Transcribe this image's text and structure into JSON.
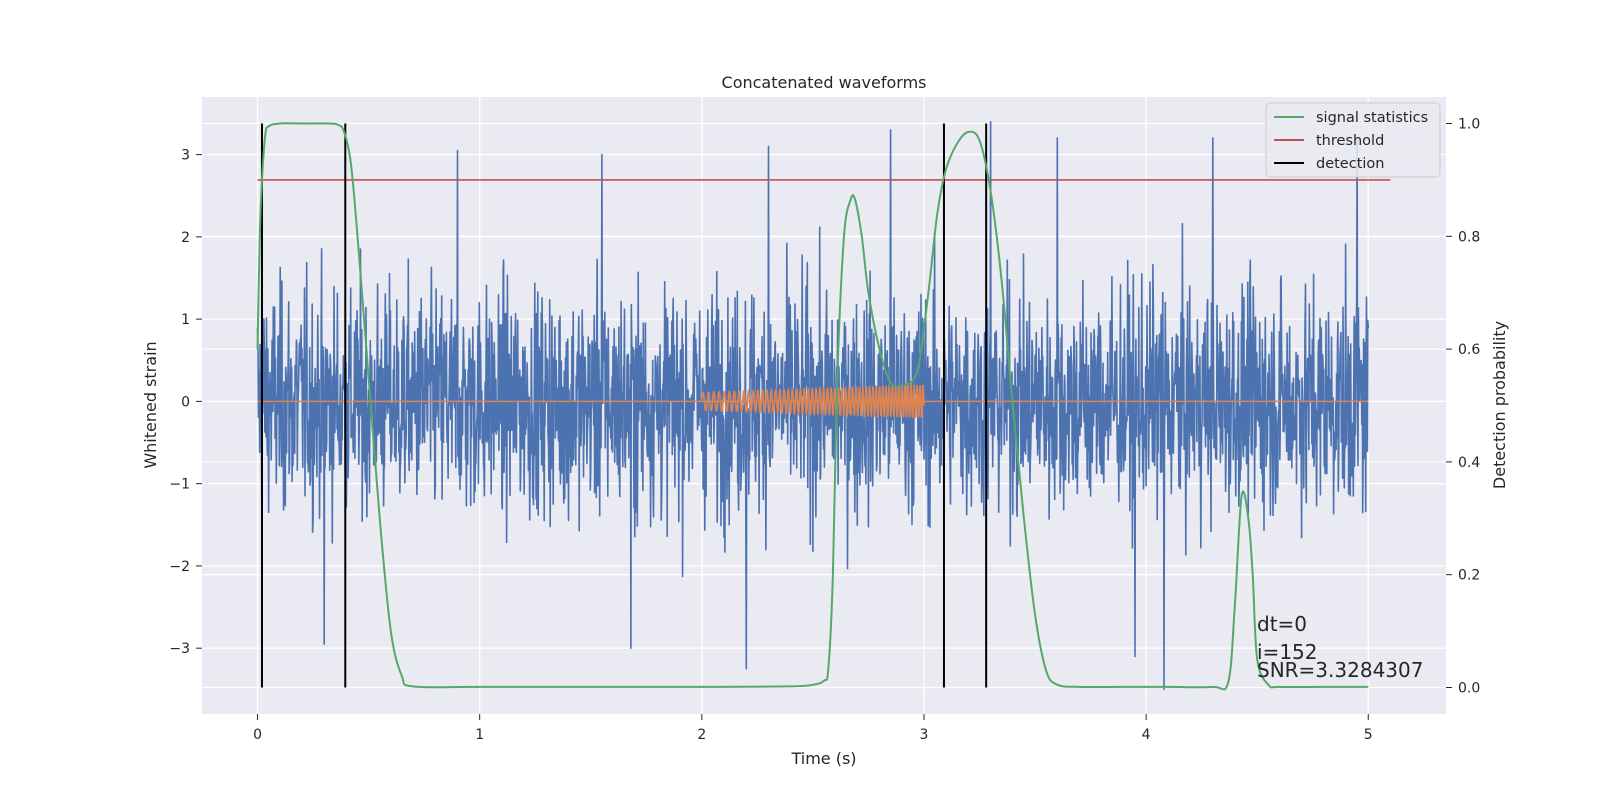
{
  "chart_data": {
    "type": "line",
    "title": "Concatenated waveforms",
    "xlabel": "Time (s)",
    "ylabel": "Whitened strain",
    "y2label": "Detection probability",
    "xlim": [
      -0.25,
      5.35
    ],
    "ylim": [
      -3.8,
      3.7
    ],
    "y2lim": [
      -0.047,
      1.047
    ],
    "xticks": [
      0,
      1,
      2,
      3,
      4,
      5
    ],
    "yticks": [
      -3,
      -2,
      -1,
      0,
      1,
      2,
      3
    ],
    "y2ticks": [
      0.0,
      0.2,
      0.4,
      0.6,
      0.8,
      1.0
    ],
    "xtick_labels": [
      "0",
      "1",
      "2",
      "3",
      "4",
      "5"
    ],
    "ytick_labels": [
      "−3",
      "−2",
      "−1",
      "0",
      "1",
      "2",
      "3"
    ],
    "y2tick_labels": [
      "0.0",
      "0.2",
      "0.4",
      "0.6",
      "0.8",
      "1.0"
    ],
    "grid": true,
    "legend_position": "top-right",
    "legend": [
      {
        "label": "signal statistics",
        "color": "#55a868"
      },
      {
        "label": "threshold",
        "color": "#c44e52"
      },
      {
        "label": "detection",
        "color": "#000000"
      }
    ],
    "series": [
      {
        "kind": "noise",
        "color": "#4c72b0",
        "x_range": [
          0,
          5
        ],
        "amplitude_envelope": 3.4,
        "peaks": [
          {
            "x": 0.9,
            "y": 3.05
          },
          {
            "x": 1.55,
            "y": 3.0
          },
          {
            "x": 2.3,
            "y": 3.1
          },
          {
            "x": 2.85,
            "y": 3.3
          },
          {
            "x": 3.3,
            "y": 3.4
          },
          {
            "x": 3.6,
            "y": 3.2
          },
          {
            "x": 4.3,
            "y": 3.2
          },
          {
            "x": 4.95,
            "y": 3.2
          },
          {
            "x": 4.08,
            "y": -3.5
          },
          {
            "x": 3.95,
            "y": -3.1
          },
          {
            "x": 2.2,
            "y": -3.25
          },
          {
            "x": 1.68,
            "y": -3.0
          },
          {
            "x": 0.3,
            "y": -2.95
          }
        ]
      },
      {
        "kind": "chirp",
        "color": "#dd8452",
        "baseline": 0.0,
        "x_range": [
          0,
          5
        ],
        "chirp_range": [
          2.0,
          3.0
        ],
        "amplitude_start": 0.11,
        "amplitude_end": 0.2
      },
      {
        "name": "signal statistics",
        "axis": "right",
        "color": "#55a868",
        "x": [
          0.0,
          0.01,
          0.02,
          0.035,
          0.05,
          0.1,
          0.2,
          0.3,
          0.36,
          0.39,
          0.42,
          0.45,
          0.5,
          0.55,
          0.6,
          0.65,
          0.7,
          1.0,
          1.5,
          2.0,
          2.4,
          2.5,
          2.55,
          2.57,
          2.59,
          2.61,
          2.64,
          2.67,
          2.69,
          2.72,
          2.75,
          2.8,
          2.85,
          2.9,
          2.95,
          2.98,
          3.02,
          3.06,
          3.1,
          3.15,
          3.2,
          3.25,
          3.3,
          3.35,
          3.4,
          3.45,
          3.5,
          3.55,
          3.6,
          3.7,
          3.9,
          4.1,
          4.3,
          4.37,
          4.4,
          4.43,
          4.46,
          4.48,
          4.5,
          4.55,
          4.6,
          4.8,
          5.0
        ],
        "y": [
          0.6,
          0.8,
          0.9,
          0.98,
          0.995,
          1.0,
          1.0,
          1.0,
          0.998,
          0.985,
          0.93,
          0.8,
          0.55,
          0.3,
          0.1,
          0.02,
          0.002,
          0.001,
          0.001,
          0.001,
          0.002,
          0.005,
          0.012,
          0.035,
          0.2,
          0.55,
          0.8,
          0.865,
          0.865,
          0.8,
          0.7,
          0.6,
          0.54,
          0.535,
          0.545,
          0.58,
          0.7,
          0.84,
          0.92,
          0.965,
          0.985,
          0.97,
          0.88,
          0.72,
          0.5,
          0.3,
          0.13,
          0.03,
          0.005,
          0.001,
          0.001,
          0.001,
          0.001,
          0.01,
          0.15,
          0.34,
          0.3,
          0.2,
          0.05,
          0.005,
          0.001,
          0.001,
          0.001
        ]
      },
      {
        "name": "threshold",
        "axis": "right",
        "color": "#c44e52",
        "x": [
          0.0,
          5.1
        ],
        "y": [
          0.9,
          0.9
        ]
      }
    ],
    "detections": {
      "name": "detection",
      "color": "#000000",
      "x": [
        0.02,
        0.395,
        3.09,
        3.28
      ],
      "y2_range": [
        0.0,
        1.0
      ]
    },
    "annotations": [
      "dt=0",
      "i=152",
      "SNR=3.3284307"
    ]
  }
}
